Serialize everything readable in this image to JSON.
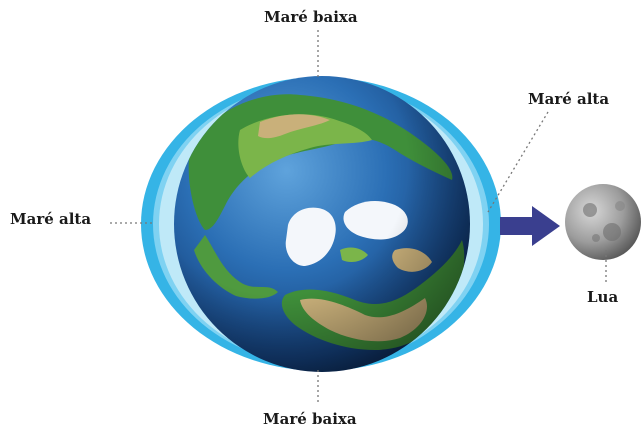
{
  "labels": {
    "low_tide_top": "Maré baixa",
    "low_tide_bottom": "Maré baixa",
    "high_tide_left": "Maré alta",
    "high_tide_right": "Maré alta",
    "moon": "Lua"
  },
  "colors": {
    "water_bulge": "#35b4e6",
    "ocean": "#1e5fa3",
    "arrow": "#3a3f8f",
    "moon": "#9a9a9a",
    "text": "#1a1a1a"
  }
}
